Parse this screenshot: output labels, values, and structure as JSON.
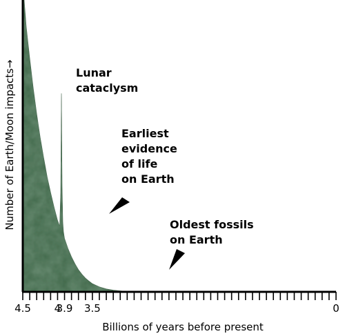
{
  "chart_data": {
    "type": "area",
    "title": "",
    "xlabel": "Billions of years before present",
    "ylabel": "Number of Earth/Moon impacts",
    "ylabel_arrow": "→",
    "xlim": [
      4.5,
      0
    ],
    "x_reversed": true,
    "ylim": [
      0,
      100
    ],
    "tick_positions": [
      4.5,
      4.0,
      3.9,
      3.5,
      0
    ],
    "tick_labels": [
      "4.5",
      "4",
      "3.9",
      "3.5",
      "0"
    ],
    "minor_tick_step": 0.1,
    "grid": false,
    "fill_color": "#3e6647",
    "series": [
      {
        "values": [
          [
            4.5,
            100
          ],
          [
            4.48,
            100
          ],
          [
            4.45,
            91
          ],
          [
            4.4,
            80
          ],
          [
            4.35,
            70
          ],
          [
            4.3,
            61
          ],
          [
            4.25,
            53
          ],
          [
            4.2,
            46
          ],
          [
            4.15,
            39.5
          ],
          [
            4.1,
            34
          ],
          [
            4.05,
            29
          ],
          [
            4.0,
            24.5
          ],
          [
            3.97,
            22.5
          ],
          [
            3.955,
            34
          ],
          [
            3.945,
            68
          ],
          [
            3.935,
            36
          ],
          [
            3.925,
            24
          ],
          [
            3.915,
            20.5
          ],
          [
            3.9,
            18.3
          ],
          [
            3.85,
            14.8
          ],
          [
            3.8,
            12
          ],
          [
            3.75,
            9.6
          ],
          [
            3.7,
            7.6
          ],
          [
            3.65,
            6
          ],
          [
            3.6,
            4.7
          ],
          [
            3.55,
            3.7
          ],
          [
            3.5,
            2.8
          ],
          [
            3.4,
            1.7
          ],
          [
            3.3,
            1.0
          ],
          [
            3.2,
            0.6
          ],
          [
            3.1,
            0.35
          ],
          [
            3.0,
            0.15
          ],
          [
            2.95,
            0
          ]
        ]
      }
    ],
    "annotations": [
      {
        "lines": [
          "Lunar",
          "cataclysm"
        ],
        "x": 3.945,
        "pointer": false
      },
      {
        "lines": [
          "Earliest",
          "evidence",
          "of life",
          "on Earth"
        ],
        "x": 3.9,
        "pointer": true
      },
      {
        "lines": [
          "Oldest fossils",
          "on Earth"
        ],
        "x": 3.5,
        "pointer": true
      }
    ]
  }
}
